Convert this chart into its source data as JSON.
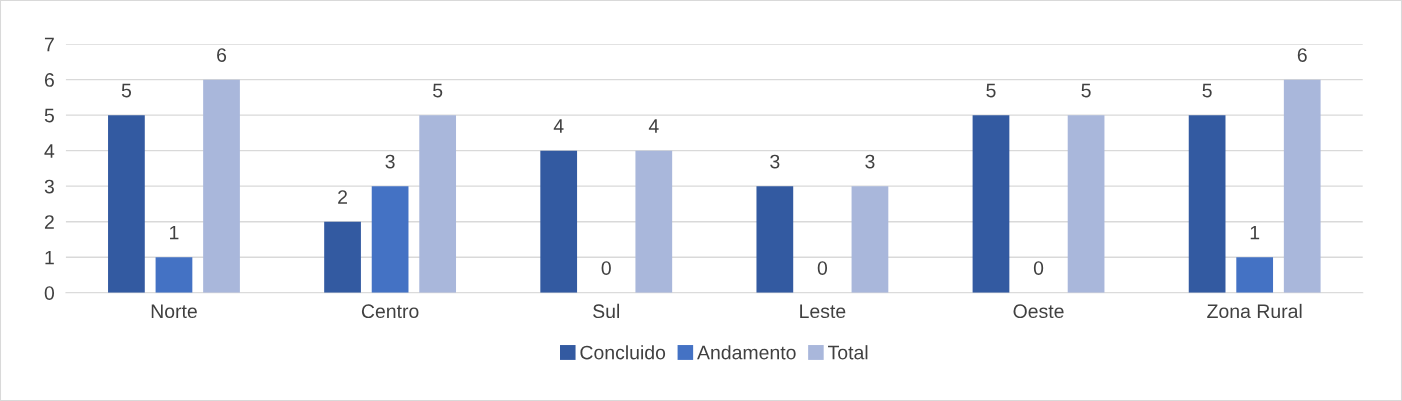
{
  "chart_data": {
    "type": "bar",
    "categories": [
      "Norte",
      "Centro",
      "Sul",
      "Leste",
      "Oeste",
      "Zona Rural"
    ],
    "series": [
      {
        "name": "Concluido",
        "color": "#335aa1",
        "values": [
          5,
          2,
          4,
          3,
          5,
          5
        ]
      },
      {
        "name": "Andamento",
        "color": "#4472c4",
        "values": [
          1,
          3,
          0,
          0,
          0,
          1
        ]
      },
      {
        "name": "Total",
        "color": "#a9b7db",
        "values": [
          6,
          5,
          4,
          3,
          5,
          6
        ]
      }
    ],
    "ylim": [
      0,
      7
    ],
    "yticks": [
      0,
      1,
      2,
      3,
      4,
      5,
      6,
      7
    ],
    "grid": "y",
    "legend": "bottom",
    "data_labels": true
  }
}
